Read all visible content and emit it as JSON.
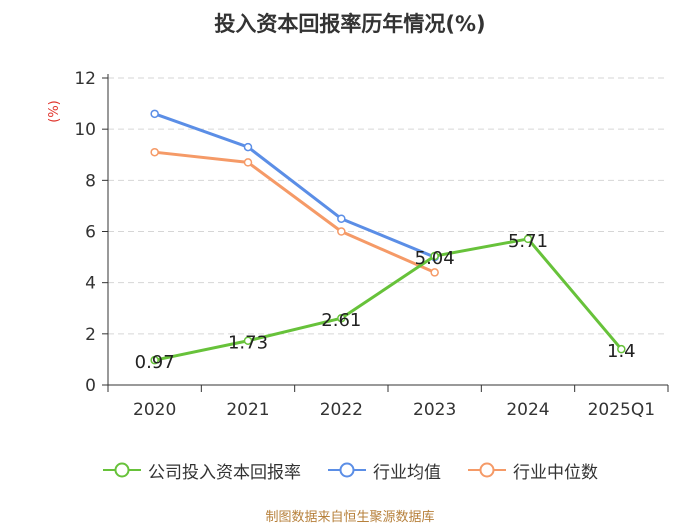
{
  "chart_data": {
    "type": "line",
    "title": "投入资本回报率历年情况(%)",
    "ylabel": "(%)",
    "xlabel": "",
    "categories": [
      "2020",
      "2021",
      "2022",
      "2023",
      "2024",
      "2025Q1"
    ],
    "ylim": [
      0,
      12
    ],
    "yticks": [
      0,
      2,
      4,
      6,
      8,
      10,
      12
    ],
    "grid": true,
    "legend_position": "bottom",
    "series": [
      {
        "name": "公司投入资本回报率",
        "color": "#67c23a",
        "values": [
          0.97,
          1.73,
          2.61,
          5.04,
          5.71,
          1.4
        ],
        "labels": [
          "0.97",
          "1.73",
          "2.61",
          "5.04",
          "5.71",
          "1.4"
        ]
      },
      {
        "name": "行业均值",
        "color": "#5b8ee6",
        "values": [
          10.6,
          9.3,
          6.5,
          5.0,
          null,
          null
        ]
      },
      {
        "name": "行业中位数",
        "color": "#f59a67",
        "values": [
          9.1,
          8.7,
          6.0,
          4.4,
          null,
          null
        ]
      }
    ]
  },
  "source_text": "制图数据来自恒生聚源数据库"
}
